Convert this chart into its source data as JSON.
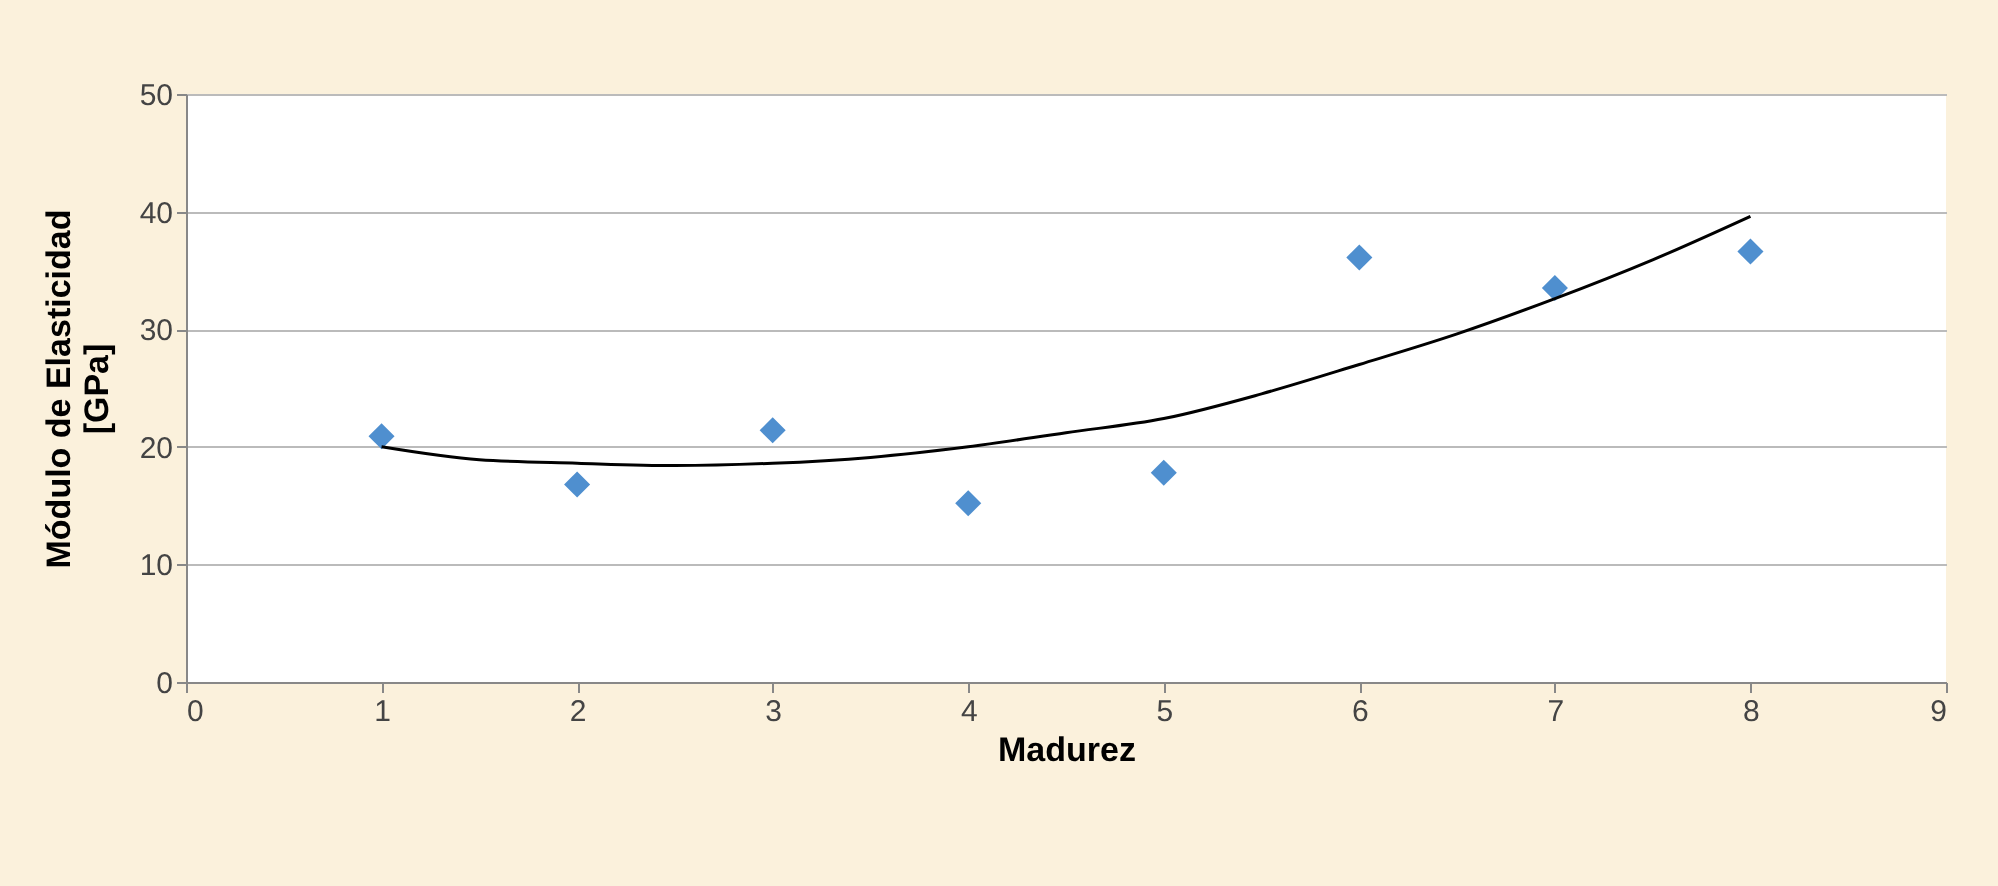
{
  "chart_data": {
    "type": "scatter",
    "xlabel": "Madurez",
    "ylabel": "Módulo de Elasticidad\n[GPa]",
    "x": [
      1,
      2,
      3,
      4,
      5,
      6,
      7,
      8
    ],
    "series": [
      {
        "color": "#4f8fcf",
        "marker": "diamond",
        "values": [
          20.9,
          16.8,
          21.4,
          15.2,
          17.8,
          36.1,
          33.5,
          36.6
        ]
      },
      {
        "type": "line",
        "color": "#000000",
        "marker": "none",
        "x": [
          1,
          1.5,
          2,
          2.5,
          3,
          3.5,
          4,
          4.5,
          5,
          5.5,
          6,
          6.5,
          7,
          7.5,
          8
        ],
        "values": [
          20,
          18.9,
          18.6,
          18.4,
          18.6,
          19.1,
          20,
          21.2,
          22.4,
          24.5,
          27,
          29.6,
          32.6,
          35.9,
          39.6
        ]
      }
    ],
    "xlim": [
      0,
      9
    ],
    "xticks": [
      0,
      1,
      2,
      3,
      4,
      5,
      6,
      7,
      8,
      9
    ],
    "ylim": [
      0,
      50
    ],
    "yticks": [
      0,
      10,
      20,
      30,
      40,
      50
    ],
    "grid": "y"
  }
}
